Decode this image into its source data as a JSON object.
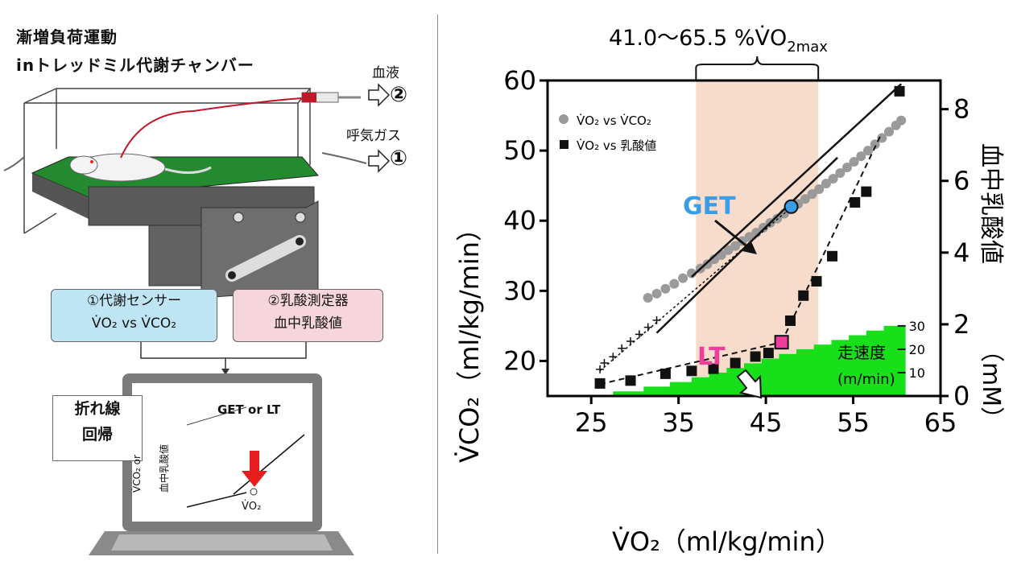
{
  "left": {
    "title_line1": "漸増負荷運動",
    "title_line2": "inトレッドミル代謝チャンバー",
    "blood_label": "血液",
    "blood_num": "②",
    "gas_label": "呼気ガス",
    "gas_num": "①",
    "sensor_box": {
      "line1": "①代謝センサー",
      "line2": "V̇O₂ vs V̇CO₂"
    },
    "lactate_box": {
      "line1": "②乳酸測定器",
      "line2": "血中乳酸値"
    },
    "regression_box": {
      "line1": "折れ線",
      "line2": "回帰"
    },
    "laptop": {
      "get_or_lt": "GET or LT",
      "y_axis": "V̇CO₂ or",
      "y_axis_2": "血中乳酸値",
      "x_axis": "V̇O₂"
    }
  },
  "chart": {
    "range_label": "41.0～65.5 %V̇O",
    "range_sub": "2max",
    "legend_vco2": "V̇O₂ vs V̇CO₂",
    "legend_lactate": "V̇O₂ vs 乳酸値",
    "get_label": "GET",
    "lt_label": "LT",
    "speed_label_1": "走速度",
    "speed_label_2": "(m/min)",
    "left_axis_title": "V̇CO₂（ml/kg/min）",
    "right_axis_title_1": "血中乳酸値",
    "right_axis_title_2": "（mM）",
    "x_axis_title": "V̇O₂（ml/kg/min）",
    "colors": {
      "band": "#f8dccb",
      "get": "#3a9de8",
      "lt": "#f03c9b",
      "speed_fill": "#17e01b",
      "scatter": "#9a9a9a"
    }
  },
  "chart_data": {
    "type": "scatter",
    "x_ticks": [
      "25",
      "35",
      "45",
      "55",
      "65"
    ],
    "y_left_ticks": [
      "20",
      "30",
      "40",
      "50",
      "60"
    ],
    "y_right_ticks": [
      "0",
      "2",
      "4",
      "6",
      "8"
    ],
    "speed_ticks": [
      "10",
      "20",
      "30"
    ],
    "xlim": [
      20,
      65
    ],
    "ylim_left": [
      15,
      60
    ],
    "ylim_right": [
      0,
      8.8
    ],
    "band_x": [
      37.0,
      51.0
    ],
    "get_point": {
      "x": 47.9,
      "y": 42.0
    },
    "lt_point": {
      "x": 46.8,
      "y": 1.5
    },
    "vco2_series": {
      "x": [
        31.5,
        32.5,
        33.5,
        34.5,
        35.5,
        36.5,
        37.5,
        38.3,
        39.1,
        39.9,
        40.7,
        41.5,
        42.3,
        43.1,
        43.9,
        44.7,
        45.5,
        46.3,
        47.1,
        47.9,
        48.7,
        49.5,
        50.3,
        51.1,
        51.9,
        52.7,
        53.5,
        54.3,
        55.1,
        55.9,
        56.7,
        57.5,
        58.3,
        59.1,
        59.9,
        60.5
      ],
      "y": [
        29.0,
        29.6,
        30.3,
        31.0,
        31.8,
        32.5,
        33.2,
        33.8,
        34.5,
        35.1,
        35.8,
        36.4,
        37.1,
        37.7,
        38.3,
        39.0,
        39.7,
        40.3,
        41.0,
        41.7,
        42.4,
        43.1,
        43.8,
        44.5,
        45.3,
        46.0,
        46.8,
        47.6,
        48.4,
        49.2,
        50.0,
        50.9,
        51.8,
        52.7,
        53.6,
        54.3
      ]
    },
    "pre_series": {
      "x": [
        26.0,
        26.5,
        27.5,
        28.5,
        29.5,
        30.5,
        31.5,
        32.5
      ],
      "y": [
        18.8,
        19.7,
        20.6,
        21.8,
        22.8,
        23.8,
        24.8,
        25.8
      ]
    },
    "lactate_series": {
      "x": [
        26.0,
        29.5,
        33.5,
        36.5,
        39.0,
        41.5,
        43.8,
        45.3,
        46.8,
        47.8,
        49.3,
        50.8,
        52.6,
        55.2,
        56.5,
        60.3
      ],
      "y": [
        0.35,
        0.43,
        0.62,
        0.7,
        0.76,
        0.92,
        1.1,
        1.2,
        1.5,
        2.1,
        2.8,
        3.2,
        3.9,
        5.4,
        5.7,
        8.5
      ]
    },
    "speed_profile": {
      "x": [
        27.5,
        31,
        34,
        36.5,
        38.5,
        40.5,
        42.5,
        44.5,
        46.5,
        48.5,
        50.5,
        52.5,
        54.5,
        56.5,
        58.5,
        61
      ],
      "speed": [
        2,
        4,
        6,
        8,
        10,
        12,
        14,
        16,
        18,
        20,
        22,
        24,
        26,
        28,
        30,
        31
      ]
    }
  }
}
